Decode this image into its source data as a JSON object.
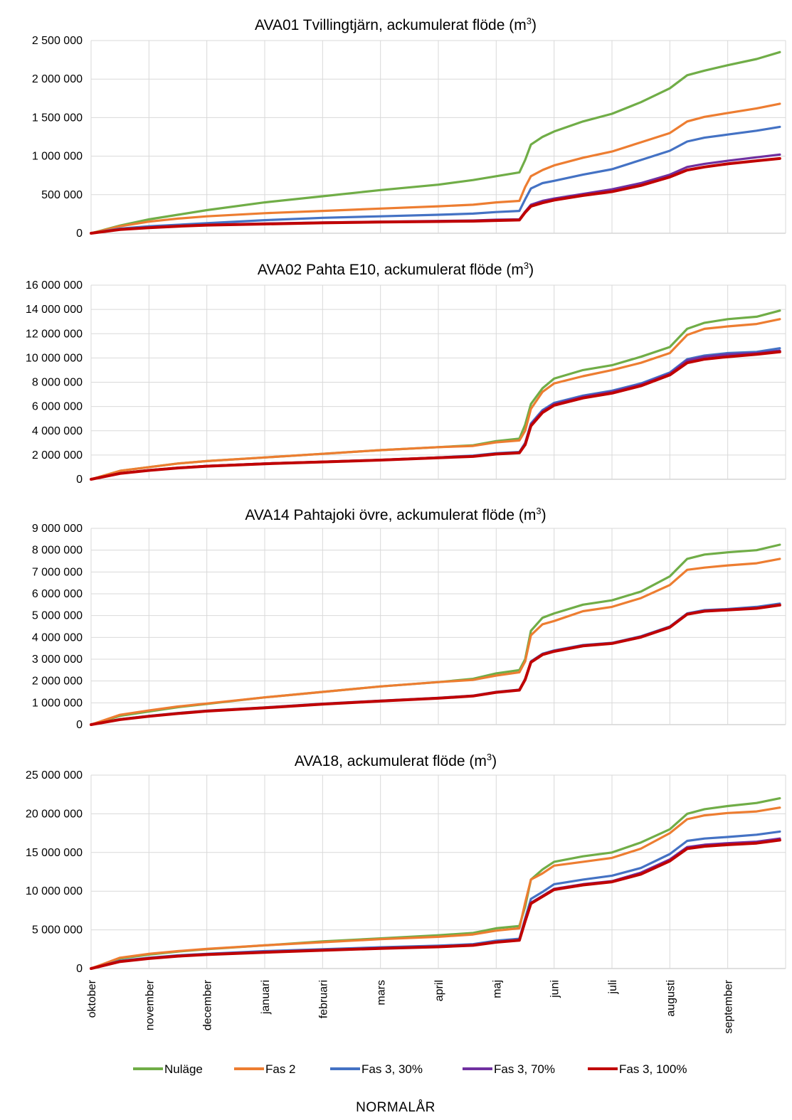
{
  "months": [
    "oktober",
    "november",
    "december",
    "januari",
    "februari",
    "mars",
    "april",
    "maj",
    "juni",
    "juli",
    "augusti",
    "september"
  ],
  "series_meta": [
    {
      "name": "Nuläge",
      "color": "#70AD47"
    },
    {
      "name": "Fas 2",
      "color": "#ED7D31"
    },
    {
      "name": "Fas 3, 30%",
      "color": "#4472C4"
    },
    {
      "name": "Fas 3, 70%",
      "color": "#7030A0"
    },
    {
      "name": "Fas 3, 100%",
      "color": "#C00000"
    }
  ],
  "footer": "NORMALÅR",
  "chart_data": [
    {
      "type": "line",
      "title": "AVA01 Tvillingtjärn, ackumulerat flöde (m",
      "title_sup": "3",
      "title_end": ")",
      "x": [
        0,
        0.5,
        1,
        1.5,
        2,
        3,
        4,
        5,
        6,
        6.6,
        7,
        7.4,
        7.5,
        7.6,
        7.8,
        8,
        8.5,
        9,
        9.5,
        10,
        10.3,
        10.6,
        11,
        11.5,
        11.9
      ],
      "ylim": [
        0,
        2500000
      ],
      "yticks": [
        0,
        500000,
        1000000,
        1500000,
        2000000,
        2500000
      ],
      "ytick_labels": [
        "0",
        "500 000",
        "1 000 000",
        "1 500 000",
        "2 000 000",
        "2 500 000"
      ],
      "series": [
        {
          "values": [
            0,
            100000,
            180000,
            240000,
            300000,
            400000,
            480000,
            560000,
            630000,
            690000,
            740000,
            790000,
            950000,
            1150000,
            1250000,
            1320000,
            1450000,
            1550000,
            1700000,
            1880000,
            2050000,
            2110000,
            2180000,
            2260000,
            2350000
          ]
        },
        {
          "values": [
            0,
            90000,
            150000,
            190000,
            220000,
            260000,
            290000,
            320000,
            350000,
            370000,
            400000,
            420000,
            600000,
            740000,
            820000,
            880000,
            980000,
            1060000,
            1180000,
            1300000,
            1450000,
            1510000,
            1560000,
            1620000,
            1680000
          ]
        },
        {
          "values": [
            0,
            60000,
            90000,
            110000,
            130000,
            170000,
            200000,
            220000,
            240000,
            255000,
            275000,
            290000,
            440000,
            580000,
            650000,
            680000,
            760000,
            830000,
            950000,
            1070000,
            1190000,
            1240000,
            1280000,
            1330000,
            1380000
          ]
        },
        {
          "values": [
            0,
            50000,
            75000,
            95000,
            110000,
            125000,
            140000,
            150000,
            160000,
            165000,
            175000,
            180000,
            280000,
            370000,
            420000,
            450000,
            510000,
            570000,
            650000,
            760000,
            860000,
            900000,
            940000,
            985000,
            1020000
          ]
        },
        {
          "values": [
            0,
            48000,
            72000,
            90000,
            105000,
            120000,
            135000,
            145000,
            152000,
            157000,
            165000,
            172000,
            270000,
            350000,
            395000,
            430000,
            490000,
            540000,
            620000,
            730000,
            820000,
            860000,
            900000,
            940000,
            970000
          ]
        }
      ]
    },
    {
      "type": "line",
      "title": "AVA02 Pahta E10, ackumulerat flöde (m",
      "title_sup": "3",
      "title_end": ")",
      "x": [
        0,
        0.5,
        1,
        1.5,
        2,
        3,
        4,
        5,
        6,
        6.6,
        7,
        7.4,
        7.5,
        7.6,
        7.8,
        8,
        8.5,
        9,
        9.5,
        10,
        10.3,
        10.6,
        11,
        11.5,
        11.9
      ],
      "ylim": [
        0,
        16000000
      ],
      "yticks": [
        0,
        2000000,
        4000000,
        6000000,
        8000000,
        10000000,
        12000000,
        14000000,
        16000000
      ],
      "ytick_labels": [
        "0",
        "2 000 000",
        "4 000 000",
        "6 000 000",
        "8 000 000",
        "10 000 000",
        "12 000 000",
        "14 000 000",
        "16 000 000"
      ],
      "series": [
        {
          "values": [
            0,
            700000,
            1000000,
            1300000,
            1500000,
            1800000,
            2100000,
            2400000,
            2650000,
            2800000,
            3150000,
            3350000,
            4500000,
            6200000,
            7500000,
            8300000,
            9000000,
            9400000,
            10100000,
            10900000,
            12400000,
            12900000,
            13200000,
            13400000,
            13900000
          ]
        },
        {
          "values": [
            0,
            700000,
            1000000,
            1300000,
            1500000,
            1800000,
            2100000,
            2400000,
            2650000,
            2750000,
            3050000,
            3200000,
            4000000,
            5800000,
            7200000,
            7900000,
            8500000,
            9000000,
            9600000,
            10400000,
            11900000,
            12400000,
            12600000,
            12800000,
            13200000
          ]
        },
        {
          "values": [
            0,
            500000,
            750000,
            950000,
            1100000,
            1300000,
            1450000,
            1600000,
            1800000,
            1950000,
            2150000,
            2250000,
            3000000,
            4600000,
            5700000,
            6300000,
            6900000,
            7300000,
            7900000,
            8800000,
            9900000,
            10200000,
            10400000,
            10500000,
            10800000
          ]
        },
        {
          "values": [
            0,
            500000,
            750000,
            950000,
            1100000,
            1300000,
            1450000,
            1600000,
            1800000,
            1900000,
            2100000,
            2200000,
            2900000,
            4500000,
            5600000,
            6200000,
            6800000,
            7200000,
            7800000,
            8700000,
            9800000,
            10100000,
            10300000,
            10400000,
            10600000
          ]
        },
        {
          "values": [
            0,
            480000,
            730000,
            930000,
            1080000,
            1280000,
            1430000,
            1580000,
            1770000,
            1880000,
            2080000,
            2180000,
            2850000,
            4400000,
            5500000,
            6100000,
            6700000,
            7100000,
            7700000,
            8600000,
            9600000,
            9900000,
            10100000,
            10300000,
            10500000
          ]
        }
      ]
    },
    {
      "type": "line",
      "title": "AVA14 Pahtajoki övre, ackumulerat flöde (m",
      "title_sup": "3",
      "title_end": ")",
      "x": [
        0,
        0.5,
        1,
        1.5,
        2,
        3,
        4,
        5,
        6,
        6.6,
        7,
        7.4,
        7.5,
        7.6,
        7.8,
        8,
        8.5,
        9,
        9.5,
        10,
        10.3,
        10.6,
        11,
        11.5,
        11.9
      ],
      "ylim": [
        0,
        9000000
      ],
      "yticks": [
        0,
        1000000,
        2000000,
        3000000,
        4000000,
        5000000,
        6000000,
        7000000,
        8000000,
        9000000
      ],
      "ytick_labels": [
        "0",
        "1 000 000",
        "2 000 000",
        "3 000 000",
        "4 000 000",
        "5 000 000",
        "6 000 000",
        "7 000 000",
        "8 000 000",
        "9 000 000"
      ],
      "series": [
        {
          "values": [
            0,
            400000,
            600000,
            800000,
            950000,
            1250000,
            1500000,
            1750000,
            1950000,
            2100000,
            2350000,
            2500000,
            3000000,
            4300000,
            4900000,
            5100000,
            5500000,
            5700000,
            6100000,
            6800000,
            7600000,
            7800000,
            7900000,
            8000000,
            8250000
          ]
        },
        {
          "values": [
            0,
            450000,
            650000,
            830000,
            970000,
            1250000,
            1500000,
            1750000,
            1950000,
            2050000,
            2250000,
            2400000,
            2900000,
            4100000,
            4600000,
            4750000,
            5200000,
            5400000,
            5800000,
            6400000,
            7100000,
            7200000,
            7300000,
            7400000,
            7600000
          ]
        },
        {
          "values": [
            0,
            250000,
            400000,
            530000,
            640000,
            790000,
            960000,
            1100000,
            1230000,
            1330000,
            1500000,
            1600000,
            2100000,
            2900000,
            3250000,
            3400000,
            3650000,
            3750000,
            4050000,
            4500000,
            5100000,
            5250000,
            5300000,
            5400000,
            5550000
          ]
        },
        {
          "values": [
            0,
            240000,
            390000,
            520000,
            630000,
            780000,
            950000,
            1090000,
            1220000,
            1320000,
            1490000,
            1590000,
            2080000,
            2880000,
            3230000,
            3380000,
            3630000,
            3730000,
            4030000,
            4480000,
            5080000,
            5220000,
            5280000,
            5350000,
            5500000
          ]
        },
        {
          "values": [
            0,
            230000,
            380000,
            510000,
            620000,
            770000,
            940000,
            1080000,
            1210000,
            1310000,
            1480000,
            1580000,
            2060000,
            2860000,
            3210000,
            3360000,
            3610000,
            3720000,
            4010000,
            4460000,
            5060000,
            5200000,
            5260000,
            5330000,
            5480000
          ]
        }
      ]
    },
    {
      "type": "line",
      "title": "AVA18, ackumulerat flöde (m",
      "title_sup": "3",
      "title_end": ")",
      "x": [
        0,
        0.5,
        1,
        1.5,
        2,
        3,
        4,
        5,
        6,
        6.6,
        7,
        7.4,
        7.5,
        7.6,
        7.8,
        8,
        8.5,
        9,
        9.5,
        10,
        10.3,
        10.6,
        11,
        11.5,
        11.9
      ],
      "ylim": [
        0,
        25000000
      ],
      "yticks": [
        0,
        5000000,
        10000000,
        15000000,
        20000000,
        25000000
      ],
      "ytick_labels": [
        "0",
        "5 000 000",
        "10 000 000",
        "15 000 000",
        "20 000 000",
        "25 000 000"
      ],
      "series": [
        {
          "values": [
            0,
            1300000,
            1800000,
            2200000,
            2500000,
            3000000,
            3500000,
            3900000,
            4300000,
            4600000,
            5200000,
            5500000,
            8000000,
            11500000,
            12800000,
            13800000,
            14500000,
            15000000,
            16300000,
            18000000,
            20000000,
            20600000,
            21000000,
            21400000,
            22000000
          ]
        },
        {
          "values": [
            0,
            1400000,
            1900000,
            2250000,
            2550000,
            3000000,
            3400000,
            3800000,
            4100000,
            4400000,
            4900000,
            5200000,
            8500000,
            11500000,
            12300000,
            13300000,
            13800000,
            14300000,
            15500000,
            17500000,
            19300000,
            19800000,
            20100000,
            20300000,
            20800000
          ]
        },
        {
          "values": [
            0,
            1000000,
            1400000,
            1700000,
            1900000,
            2250000,
            2500000,
            2750000,
            2950000,
            3150000,
            3600000,
            3850000,
            6500000,
            9000000,
            9900000,
            10900000,
            11500000,
            12000000,
            13000000,
            14800000,
            16500000,
            16800000,
            17000000,
            17300000,
            17700000
          ]
        },
        {
          "values": [
            0,
            950000,
            1350000,
            1650000,
            1850000,
            2150000,
            2400000,
            2650000,
            2850000,
            3050000,
            3450000,
            3700000,
            6200000,
            8500000,
            9400000,
            10300000,
            10900000,
            11300000,
            12400000,
            14100000,
            15700000,
            16000000,
            16200000,
            16400000,
            16800000
          ]
        },
        {
          "values": [
            0,
            900000,
            1300000,
            1600000,
            1800000,
            2100000,
            2350000,
            2600000,
            2800000,
            3000000,
            3400000,
            3650000,
            6100000,
            8400000,
            9300000,
            10200000,
            10800000,
            11200000,
            12200000,
            13900000,
            15500000,
            15800000,
            16000000,
            16200000,
            16600000
          ]
        }
      ]
    }
  ]
}
